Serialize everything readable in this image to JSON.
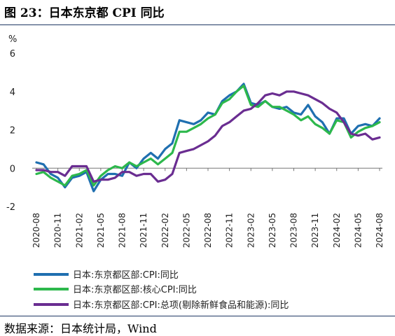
{
  "figure": {
    "title": "图 23：日本东京都 CPI 同比",
    "source": "数据来源：日本统计局，Wind"
  },
  "chart_data": {
    "type": "line",
    "ylabel": "%",
    "ylim": [
      -2,
      6
    ],
    "yticks": [
      -2,
      0,
      2,
      4,
      6
    ],
    "grid": false,
    "legend_position": "bottom",
    "x_tick_labels": [
      "2020-08",
      "2020-11",
      "2021-02",
      "2021-05",
      "2021-08",
      "2021-11",
      "2022-02",
      "2022-05",
      "2022-08",
      "2022-11",
      "2023-02",
      "2023-05",
      "2023-08",
      "2023-11",
      "2024-02",
      "2024-05",
      "2024-08"
    ],
    "x": [
      "2020-08",
      "2020-09",
      "2020-10",
      "2020-11",
      "2020-12",
      "2021-01",
      "2021-02",
      "2021-03",
      "2021-04",
      "2021-05",
      "2021-06",
      "2021-07",
      "2021-08",
      "2021-09",
      "2021-10",
      "2021-11",
      "2021-12",
      "2022-01",
      "2022-02",
      "2022-03",
      "2022-04",
      "2022-05",
      "2022-06",
      "2022-07",
      "2022-08",
      "2022-09",
      "2022-10",
      "2022-11",
      "2022-12",
      "2023-01",
      "2023-02",
      "2023-03",
      "2023-04",
      "2023-05",
      "2023-06",
      "2023-07",
      "2023-08",
      "2023-09",
      "2023-10",
      "2023-11",
      "2023-12",
      "2024-01",
      "2024-02",
      "2024-03",
      "2024-04",
      "2024-05",
      "2024-06",
      "2024-07",
      "2024-08"
    ],
    "series": [
      {
        "name": "日本:东京都区部:CPI:同比",
        "color": "#1f6fb0",
        "values": [
          0.3,
          0.2,
          -0.3,
          -0.5,
          -1.0,
          -0.5,
          -0.4,
          -0.2,
          -1.2,
          -0.6,
          -0.3,
          -0.3,
          -0.4,
          0.3,
          0.0,
          0.5,
          0.8,
          0.5,
          1.0,
          1.3,
          2.5,
          2.4,
          2.3,
          2.5,
          2.9,
          2.8,
          3.5,
          3.8,
          4.0,
          4.4,
          3.4,
          3.3,
          3.5,
          3.2,
          3.1,
          3.2,
          2.9,
          2.8,
          3.3,
          2.7,
          2.4,
          1.8,
          2.6,
          2.6,
          1.8,
          2.2,
          2.3,
          2.2,
          2.6
        ]
      },
      {
        "name": "日本:东京都区部:核心CPI:同比",
        "color": "#2db84c",
        "values": [
          -0.3,
          -0.2,
          -0.5,
          -0.7,
          -0.9,
          -0.4,
          -0.3,
          -0.1,
          -0.9,
          -0.4,
          -0.1,
          0.1,
          0.0,
          0.3,
          0.1,
          0.3,
          0.5,
          0.2,
          0.5,
          0.8,
          1.9,
          1.9,
          2.1,
          2.3,
          2.6,
          2.8,
          3.4,
          3.6,
          4.0,
          4.3,
          3.3,
          3.2,
          3.5,
          3.2,
          3.2,
          3.0,
          2.8,
          2.5,
          2.7,
          2.3,
          2.1,
          1.8,
          2.5,
          2.4,
          1.6,
          1.9,
          2.1,
          2.2,
          2.4
        ]
      },
      {
        "name": "日本:东京都区部:CPI:总项(剔除新鲜食品和能源):同比",
        "color": "#6a2d91",
        "values": [
          -0.1,
          -0.1,
          -0.2,
          -0.2,
          -0.4,
          0.1,
          0.1,
          0.1,
          -0.7,
          -0.6,
          -0.6,
          -0.5,
          -0.2,
          -0.2,
          -0.4,
          -0.3,
          -0.3,
          -0.7,
          -0.6,
          -0.3,
          0.8,
          0.9,
          1.0,
          1.2,
          1.4,
          1.7,
          2.2,
          2.4,
          2.7,
          3.0,
          3.1,
          3.4,
          3.8,
          3.9,
          3.8,
          4.0,
          4.0,
          3.9,
          3.8,
          3.6,
          3.4,
          3.1,
          2.9,
          2.4,
          1.8,
          1.7,
          1.8,
          1.5,
          1.6
        ]
      }
    ]
  }
}
